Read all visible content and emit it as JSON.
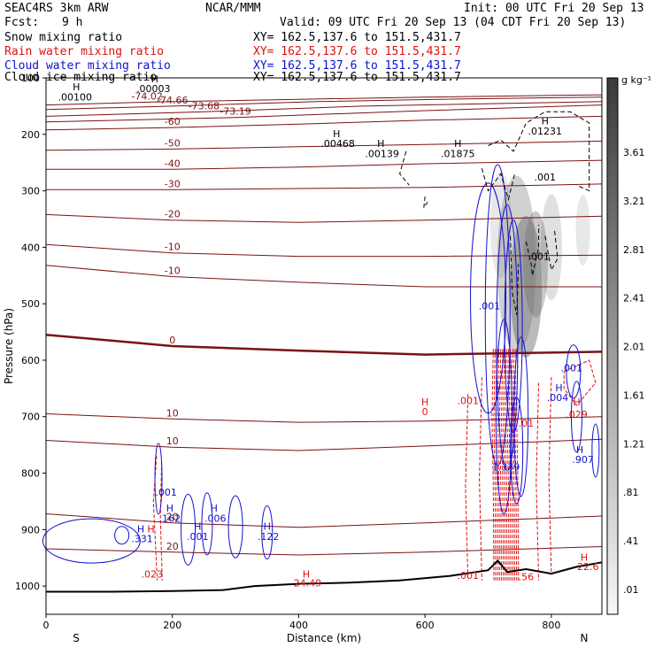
{
  "header": {
    "model": "SEAC4RS  3km ARW",
    "org": "NCAR/MMM",
    "init": "Init: 00 UTC Fri 20 Sep 13",
    "fcst_label": "Fcst:",
    "fcst_value": "9 h",
    "valid": "Valid: 09 UTC Fri 20 Sep 13 (04 CDT Fri 20 Sep 13)"
  },
  "legend": [
    {
      "name": "Snow mixing ratio",
      "xy": "XY= 162.5,137.6 to 151.5,431.7",
      "color": "#000000"
    },
    {
      "name": "Rain water mixing ratio",
      "xy": "XY= 162.5,137.6 to 151.5,431.7",
      "color": "#e01010"
    },
    {
      "name": "Cloud water mixing ratio",
      "xy": "XY= 162.5,137.6 to 151.5,431.7",
      "color": "#1010d0"
    },
    {
      "name": "Cloud ice mixing ratio",
      "xy": "XY= 162.5,137.6 to 151.5,431.7",
      "color": "#000000"
    }
  ],
  "colors": {
    "temperature": "#7a1212",
    "rain": "#e01010",
    "cloud_water": "#1010d0",
    "snow": "#000000",
    "ice_shading": "#666666"
  },
  "chart_data": {
    "type": "cross-section",
    "xlabel": "Distance (km)",
    "ylabel": "Pressure (hPa)",
    "xlim": [
      0,
      880
    ],
    "ylim": [
      1050,
      100
    ],
    "x_ticks": [
      0,
      200,
      400,
      600,
      800
    ],
    "y_ticks": [
      100,
      200,
      300,
      400,
      500,
      600,
      700,
      800,
      900,
      1000
    ],
    "endpoints": {
      "left": "S",
      "right": "N"
    },
    "colorbar": {
      "unit": "g kg⁻¹",
      "ticks": [
        ".01",
        ".41",
        ".81",
        "1.21",
        "1.61",
        "2.01",
        "2.41",
        "2.81",
        "3.21",
        "3.61"
      ]
    },
    "terrain_surface_hPa": [
      [
        0,
        1010
      ],
      [
        100,
        1010
      ],
      [
        200,
        1009
      ],
      [
        280,
        1007
      ],
      [
        330,
        1000
      ],
      [
        400,
        996
      ],
      [
        480,
        994
      ],
      [
        560,
        990
      ],
      [
        640,
        982
      ],
      [
        700,
        972
      ],
      [
        715,
        955
      ],
      [
        730,
        975
      ],
      [
        760,
        970
      ],
      [
        800,
        978
      ],
      [
        840,
        966
      ],
      [
        870,
        960
      ],
      [
        880,
        958
      ]
    ],
    "isotherms": [
      {
        "label": "-74.02",
        "points": [
          [
            0,
            148
          ],
          [
            160,
            143
          ],
          [
            400,
            138
          ],
          [
            600,
            134
          ],
          [
            880,
            130
          ]
        ]
      },
      {
        "label": "-74.66",
        "points": [
          [
            0,
            156
          ],
          [
            200,
            150
          ],
          [
            430,
            142
          ],
          [
            620,
            138
          ],
          [
            880,
            134
          ]
        ]
      },
      {
        "label": "-73.68",
        "points": [
          [
            0,
            168
          ],
          [
            250,
            160
          ],
          [
            500,
            150
          ],
          [
            880,
            142
          ]
        ]
      },
      {
        "label": "-73.19",
        "points": [
          [
            0,
            178
          ],
          [
            300,
            170
          ],
          [
            600,
            158
          ],
          [
            880,
            148
          ]
        ]
      },
      {
        "label": "-60",
        "points": [
          [
            0,
            192
          ],
          [
            200,
            188
          ],
          [
            400,
            182
          ],
          [
            600,
            175
          ],
          [
            880,
            168
          ]
        ]
      },
      {
        "label": "-50",
        "points": [
          [
            0,
            228
          ],
          [
            200,
            226
          ],
          [
            400,
            222
          ],
          [
            600,
            218
          ],
          [
            880,
            212
          ]
        ]
      },
      {
        "label": "-40",
        "points": [
          [
            0,
            262
          ],
          [
            200,
            262
          ],
          [
            400,
            258
          ],
          [
            600,
            252
          ],
          [
            880,
            246
          ]
        ]
      },
      {
        "label": "-30",
        "points": [
          [
            0,
            298
          ],
          [
            200,
            298
          ],
          [
            400,
            296
          ],
          [
            600,
            294
          ],
          [
            880,
            288
          ]
        ]
      },
      {
        "label": "-20",
        "points": [
          [
            0,
            342
          ],
          [
            200,
            352
          ],
          [
            400,
            356
          ],
          [
            600,
            352
          ],
          [
            880,
            345
          ]
        ]
      },
      {
        "label": "-10",
        "points": [
          [
            0,
            395
          ],
          [
            200,
            410
          ],
          [
            400,
            416
          ],
          [
            600,
            416
          ],
          [
            880,
            414
          ]
        ]
      },
      {
        "label": "-10",
        "points": [
          [
            0,
            432
          ],
          [
            200,
            452
          ],
          [
            400,
            462
          ],
          [
            600,
            470
          ],
          [
            880,
            470
          ]
        ]
      },
      {
        "label": "0",
        "points": [
          [
            0,
            555
          ],
          [
            200,
            575
          ],
          [
            400,
            583
          ],
          [
            600,
            590
          ],
          [
            880,
            585
          ]
        ]
      },
      {
        "label": "10",
        "points": [
          [
            0,
            695
          ],
          [
            200,
            704
          ],
          [
            400,
            710
          ],
          [
            600,
            708
          ],
          [
            880,
            700
          ]
        ]
      },
      {
        "label": "10",
        "points": [
          [
            0,
            742
          ],
          [
            200,
            754
          ],
          [
            400,
            760
          ],
          [
            600,
            752
          ],
          [
            880,
            740
          ]
        ]
      },
      {
        "label": "20",
        "points": [
          [
            0,
            872
          ],
          [
            200,
            888
          ],
          [
            400,
            896
          ],
          [
            600,
            888
          ],
          [
            880,
            876
          ]
        ]
      },
      {
        "label": "20",
        "points": [
          [
            0,
            934
          ],
          [
            200,
            940
          ],
          [
            400,
            945
          ],
          [
            600,
            940
          ],
          [
            880,
            930
          ]
        ]
      }
    ],
    "annotations": [
      {
        "text": "H",
        "x": 48,
        "p": 122,
        "color": "#000000"
      },
      {
        "text": ".00100",
        "x": 46,
        "p": 140,
        "color": "#000000"
      },
      {
        "text": "H",
        "x": 172,
        "p": 108,
        "color": "#000000"
      },
      {
        "text": ".00003",
        "x": 170,
        "p": 125,
        "color": "#000000"
      },
      {
        "text": "H",
        "x": 460,
        "p": 205,
        "color": "#000000"
      },
      {
        "text": ".00468",
        "x": 462,
        "p": 222,
        "color": "#000000"
      },
      {
        "text": "H",
        "x": 530,
        "p": 222,
        "color": "#000000"
      },
      {
        "text": ".00139",
        "x": 532,
        "p": 240,
        "color": "#000000"
      },
      {
        "text": "H",
        "x": 652,
        "p": 222,
        "color": "#000000"
      },
      {
        "text": ".01875",
        "x": 652,
        "p": 240,
        "color": "#000000"
      },
      {
        "text": "H",
        "x": 790,
        "p": 182,
        "color": "#000000"
      },
      {
        "text": ".01231",
        "x": 790,
        "p": 200,
        "color": "#000000"
      },
      {
        "text": ".001",
        "x": 790,
        "p": 282,
        "color": "#000000"
      },
      {
        "text": ".001",
        "x": 780,
        "p": 422,
        "color": "#000000"
      },
      {
        "text": ".001",
        "x": 702,
        "p": 510,
        "color": "#1010d0"
      },
      {
        "text": "H",
        "x": 196,
        "p": 868,
        "color": "#1010d0"
      },
      {
        "text": ".162",
        "x": 196,
        "p": 886,
        "color": "#1010d0"
      },
      {
        "text": ".001",
        "x": 190,
        "p": 840,
        "color": "#1010d0"
      },
      {
        "text": "H",
        "x": 266,
        "p": 868,
        "color": "#1010d0"
      },
      {
        "text": ".006",
        "x": 268,
        "p": 886,
        "color": "#1010d0"
      },
      {
        "text": "H",
        "x": 240,
        "p": 900,
        "color": "#1010d0"
      },
      {
        "text": ".001",
        "x": 240,
        "p": 918,
        "color": "#1010d0"
      },
      {
        "text": "H",
        "x": 350,
        "p": 900,
        "color": "#1010d0"
      },
      {
        "text": ".122",
        "x": 352,
        "p": 918,
        "color": "#1010d0"
      },
      {
        "text": "H",
        "x": 150,
        "p": 905,
        "color": "#1010d0"
      },
      {
        "text": ".331",
        "x": 152,
        "p": 922,
        "color": "#1010d0"
      },
      {
        "text": "H",
        "x": 166,
        "p": 905,
        "color": "#e01010"
      },
      {
        "text": ".023",
        "x": 168,
        "p": 985,
        "color": "#e01010"
      },
      {
        "text": "H",
        "x": 600,
        "p": 680,
        "color": "#e01010"
      },
      {
        "text": "0",
        "x": 600,
        "p": 697,
        "color": "#e01010"
      },
      {
        "text": ".001",
        "x": 668,
        "p": 678,
        "color": "#e01010"
      },
      {
        "text": ".001",
        "x": 668,
        "p": 987,
        "color": "#e01010"
      },
      {
        "text": ".01",
        "x": 760,
        "p": 718,
        "color": "#e01010"
      },
      {
        "text": ".029",
        "x": 840,
        "p": 702,
        "color": "#e01010"
      },
      {
        "text": "H",
        "x": 840,
        "p": 680,
        "color": "#e01010"
      },
      {
        "text": ".56",
        "x": 760,
        "p": 990,
        "color": "#e01010"
      },
      {
        "text": "H",
        "x": 852,
        "p": 955,
        "color": "#e01010"
      },
      {
        "text": "22.6",
        "x": 858,
        "p": 972,
        "color": "#e01010"
      },
      {
        "text": "H",
        "x": 412,
        "p": 985,
        "color": "#e01010"
      },
      {
        "text": "24.49",
        "x": 414,
        "p": 1001,
        "color": "#e01010"
      },
      {
        "text": "H",
        "x": 812,
        "p": 655,
        "color": "#1010d0"
      },
      {
        "text": ".004",
        "x": 810,
        "p": 672,
        "color": "#1010d0"
      },
      {
        "text": ".001",
        "x": 832,
        "p": 620,
        "color": "#1010d0"
      },
      {
        "text": "H",
        "x": 845,
        "p": 765,
        "color": "#1010d0"
      },
      {
        "text": ".907",
        "x": 850,
        "p": 782,
        "color": "#1010d0"
      },
      {
        "text": "1.339",
        "x": 728,
        "p": 795,
        "color": "#1010d0"
      }
    ]
  }
}
